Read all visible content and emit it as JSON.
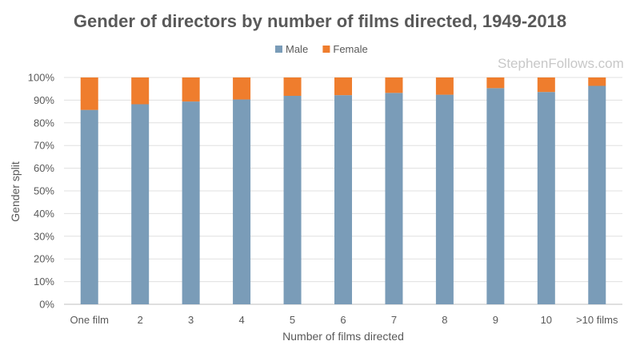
{
  "chart_data": {
    "type": "bar",
    "stacked": true,
    "title": "Gender of directors by number of films directed, 1949-2018",
    "xlabel": "Number of films directed",
    "ylabel": "Gender split",
    "categories": [
      "One film",
      "2",
      "3",
      "4",
      "5",
      "6",
      "7",
      "8",
      "9",
      "10",
      ">10 films"
    ],
    "series": [
      {
        "name": "Male",
        "color": "#7a9cb8",
        "values": [
          85.7,
          88.2,
          89.4,
          90.3,
          91.9,
          92.2,
          93.2,
          92.4,
          95.3,
          93.6,
          96.3
        ]
      },
      {
        "name": "Female",
        "color": "#ef7d2d",
        "values": [
          14.3,
          11.8,
          10.6,
          9.7,
          8.1,
          7.8,
          6.8,
          7.6,
          4.7,
          6.4,
          3.7
        ]
      }
    ],
    "y_ticks": [
      "0%",
      "10%",
      "20%",
      "30%",
      "40%",
      "50%",
      "60%",
      "70%",
      "80%",
      "90%",
      "100%"
    ],
    "ylim": [
      0,
      100
    ],
    "grid": true,
    "legend_position": "top"
  },
  "watermark": "StephenFollows.com"
}
